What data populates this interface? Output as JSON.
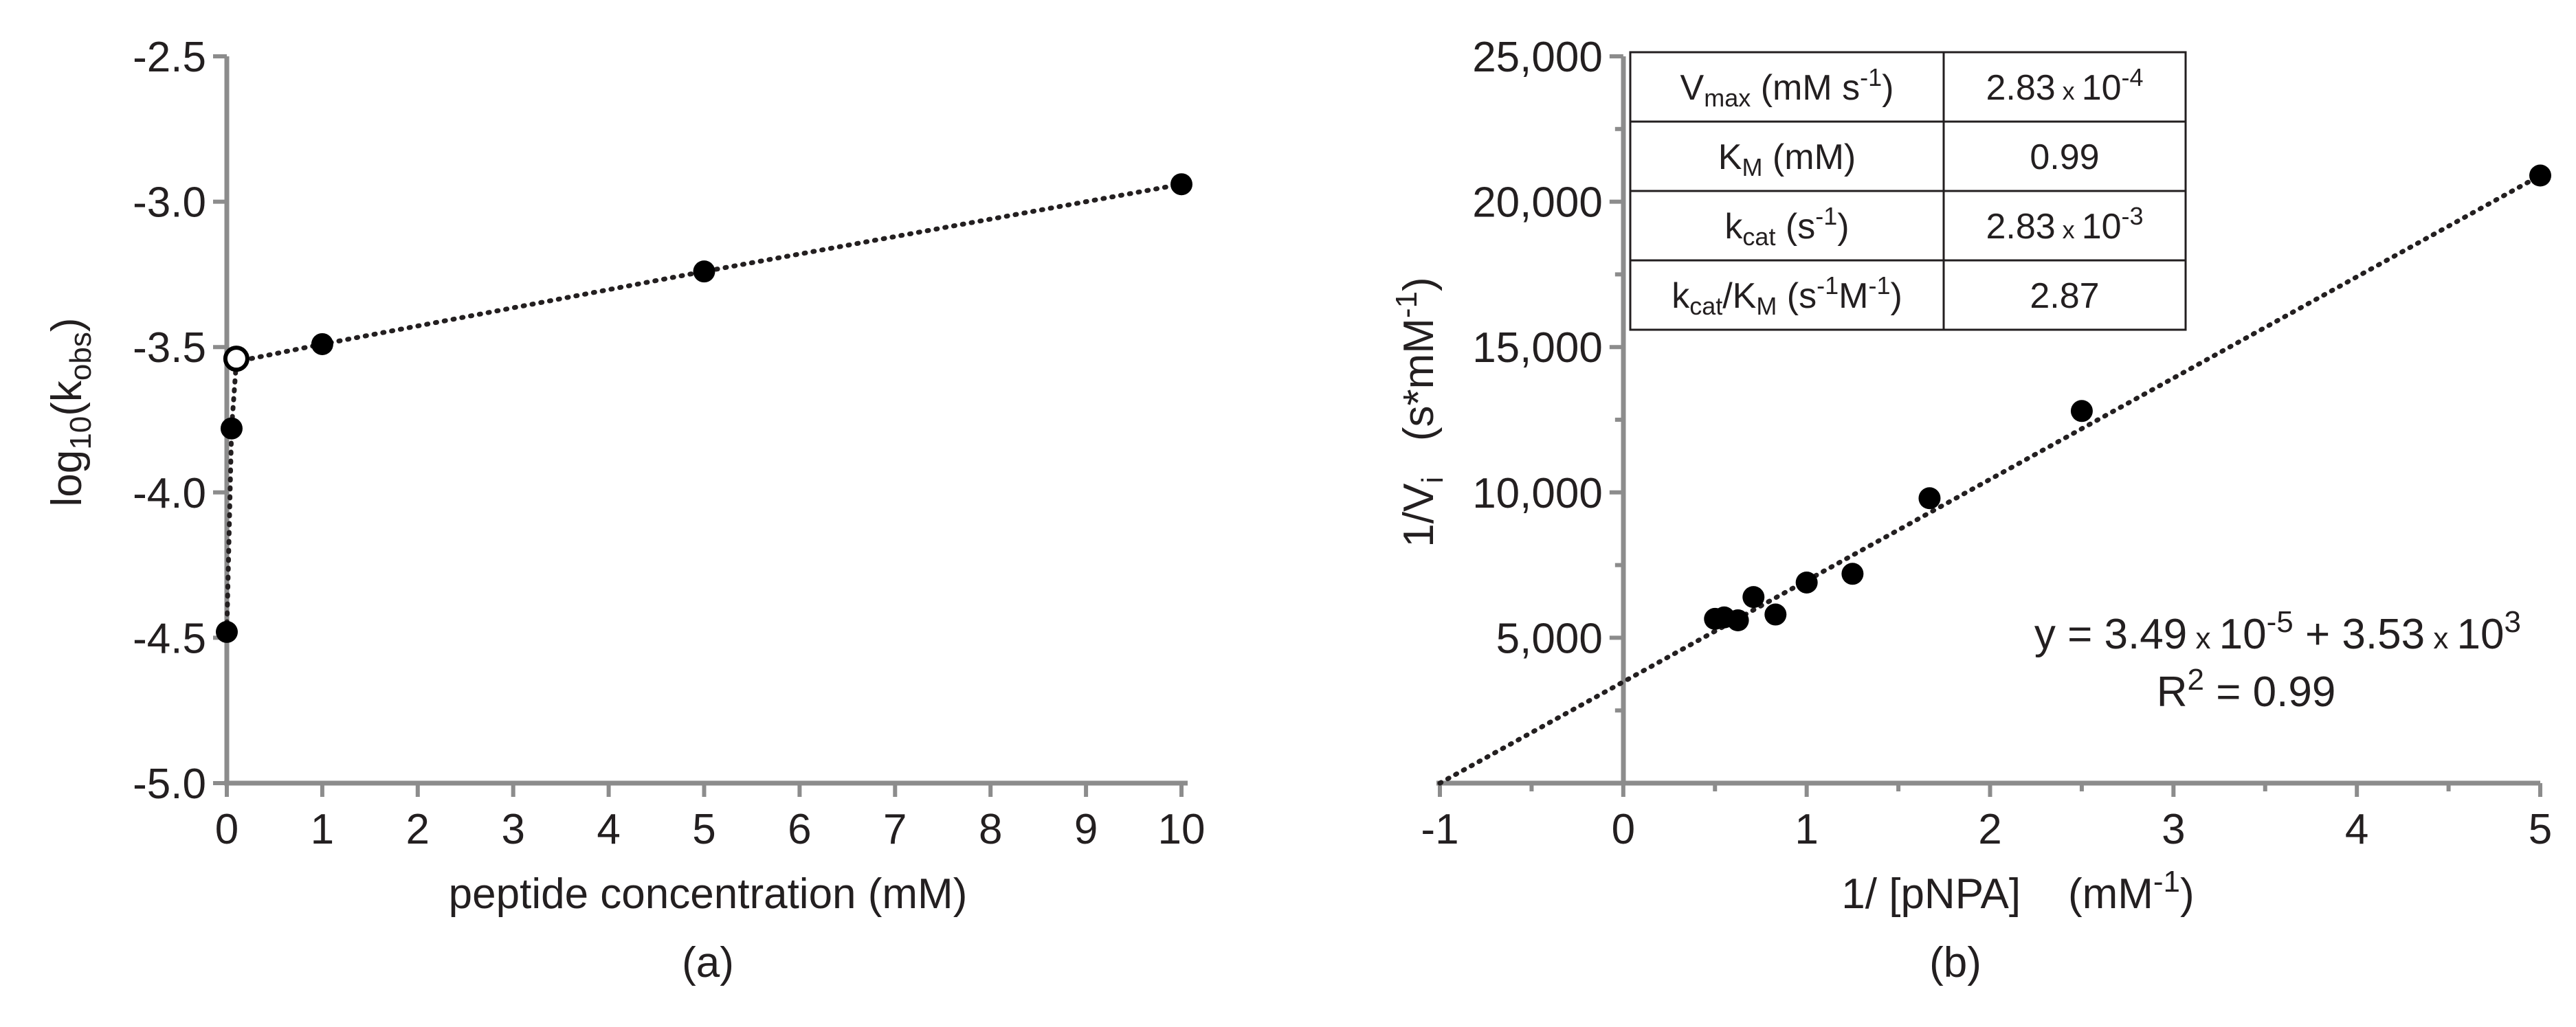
{
  "chart_data": [
    {
      "type": "scatter",
      "panel_label": "(a)",
      "xlabel": "peptide concentration (mM)",
      "ylabel_prefix": "log",
      "ylabel_base": "10",
      "ylabel_open": "(k",
      "ylabel_sub": "obs",
      "ylabel_close": ")",
      "xlim": [
        0,
        10
      ],
      "ylim": [
        -5.0,
        -2.5
      ],
      "x_ticks": [
        "0",
        "1",
        "2",
        "3",
        "4",
        "5",
        "6",
        "7",
        "8",
        "9",
        "10"
      ],
      "y_ticks": [
        "-2.5",
        "-3.0",
        "-3.5",
        "-4.0",
        "-4.5",
        "-5.0"
      ],
      "series": [
        {
          "name": "log10(kobs)",
          "marker": "filled",
          "points": [
            {
              "x": 0.0,
              "y": -4.48
            },
            {
              "x": 0.05,
              "y": -3.78
            },
            {
              "x": 1.0,
              "y": -3.49
            },
            {
              "x": 5.0,
              "y": -3.24
            },
            {
              "x": 10.0,
              "y": -2.94
            }
          ]
        },
        {
          "name": "open marker",
          "marker": "open",
          "points": [
            {
              "x": 0.1,
              "y": -3.54
            }
          ]
        }
      ],
      "connector_line": [
        {
          "x": 0.0,
          "y": -4.48
        },
        {
          "x": 0.05,
          "y": -3.78
        },
        {
          "x": 0.1,
          "y": -3.55
        },
        {
          "x": 1.0,
          "y": -3.49
        },
        {
          "x": 5.0,
          "y": -3.24
        },
        {
          "x": 10.0,
          "y": -2.94
        }
      ]
    },
    {
      "type": "scatter",
      "panel_label": "(b)",
      "xlabel_main": "1/ [pNPA]",
      "xlabel_unit_base": "(mM",
      "xlabel_unit_sup": "-1",
      "xlabel_unit_close": ")",
      "ylabel_main": "1/V",
      "ylabel_sub": "i",
      "ylabel_unit_base": "(s*mM",
      "ylabel_unit_sup": "-1",
      "ylabel_unit_close": ")",
      "xlim": [
        -1,
        5
      ],
      "ylim": [
        0,
        25000
      ],
      "x_ticks": [
        "-1",
        "0",
        "1",
        "2",
        "3",
        "4",
        "5"
      ],
      "y_ticks": [
        "5,000",
        "10,000",
        "15,000",
        "20,000",
        "25,000"
      ],
      "y_tick_values": [
        5000,
        10000,
        15000,
        20000,
        25000
      ],
      "points": [
        {
          "x": 0.5,
          "y": 5650
        },
        {
          "x": 0.55,
          "y": 5700
        },
        {
          "x": 0.625,
          "y": 5600
        },
        {
          "x": 0.71,
          "y": 6400
        },
        {
          "x": 0.83,
          "y": 5800
        },
        {
          "x": 1.0,
          "y": 6900
        },
        {
          "x": 1.25,
          "y": 7200
        },
        {
          "x": 1.67,
          "y": 9800
        },
        {
          "x": 2.5,
          "y": 12800
        },
        {
          "x": 5.0,
          "y": 20900
        }
      ],
      "fit": {
        "x0": -1,
        "y0": 0,
        "x1": 5,
        "y1": 20900
      },
      "equation": {
        "l1_a": "y = 3.49",
        "l1_x": " x ",
        "l1_b": "10",
        "l1_sup": "-5",
        "l1_c": " + 3.53",
        "l1_x2": " x ",
        "l1_d": "10",
        "l1_sup2": "3",
        "l2_a": "R",
        "l2_sup": "2",
        "l2_b": " = 0.99"
      },
      "table": {
        "vmax_label_a": "V",
        "vmax_label_sub": "max",
        "vmax_label_b": " (mM s",
        "vmax_label_sup": "-1",
        "vmax_label_c": ")",
        "vmax_val_a": "2.83",
        "vmax_val_x": " x ",
        "vmax_val_b": "10",
        "vmax_val_sup": "-4",
        "km_label_a": "K",
        "km_label_sub": "M",
        "km_label_b": " (mM)",
        "km_val": "0.99",
        "kcat_label_a": "k",
        "kcat_label_sub": "cat",
        "kcat_label_b": " (s",
        "kcat_label_sup": "-1",
        "kcat_label_c": ")",
        "kcat_val_a": "2.83",
        "kcat_val_x": " x ",
        "kcat_val_b": "10",
        "kcat_val_sup": "-3",
        "eff_label_a": "k",
        "eff_label_sub": "cat",
        "eff_label_b": "/K",
        "eff_label_sub2": "M",
        "eff_label_c": " (s",
        "eff_label_sup": "-1",
        "eff_label_d": "M",
        "eff_label_sup2": "-1",
        "eff_label_e": ")",
        "eff_val": "2.87"
      }
    }
  ]
}
